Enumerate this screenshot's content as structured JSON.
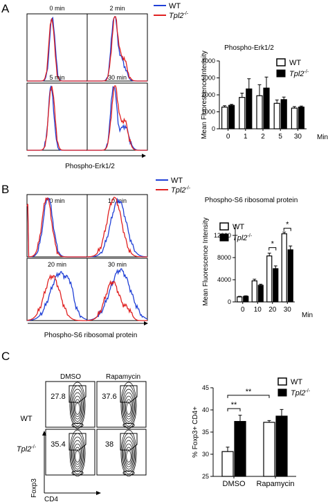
{
  "colors": {
    "wt": "#1f3fd6",
    "ko": "#e02020",
    "black": "#000000"
  },
  "panels": {
    "a": "A",
    "b": "B",
    "c": "C"
  },
  "legend": {
    "wt": "WT",
    "ko_base": "Tpl2",
    "ko_sup": "-/-"
  },
  "panel_a": {
    "flow_titles": [
      "0 min",
      "2 min",
      "5 min",
      "30 min"
    ],
    "flow_xlabel": "Phospho-Erk1/2",
    "bar_title": "Phospho-Erk1/2",
    "bar_ylabel": "Mean Fluorescence Intensity",
    "bar_unit": "Min"
  },
  "panel_b": {
    "flow_titles": [
      "0 min",
      "10 min",
      "20 min",
      "30 min"
    ],
    "flow_xlabel": "Phospho-S6 ribosomal protein",
    "bar_title": "Phospho-S6 ribosomal protein",
    "bar_ylabel": "Mean Fluorescence Intensity",
    "bar_unit": "Min",
    "sig": [
      "*",
      "*"
    ]
  },
  "panel_c": {
    "col_headers": [
      "DMSO",
      "Rapamycin"
    ],
    "row_labels": [
      "WT",
      "Tpl2"
    ],
    "row_sup": "-/-",
    "gate_values": [
      "27.8",
      "37.6",
      "35.4",
      "38"
    ],
    "yaxis": "Foxp3",
    "xaxis": "CD4",
    "bar_ylabel": "% Foxp3+ CD4+",
    "sig": [
      "**",
      "**"
    ]
  },
  "chart_data": [
    {
      "type": "bar",
      "title": "Phospho-Erk1/2",
      "xlabel": "Min",
      "ylabel": "Mean Fluorescence Intensity",
      "categories": [
        "0",
        "1",
        "2",
        "5",
        "30"
      ],
      "ylim": [
        0,
        4000
      ],
      "yticks": [
        0,
        1000,
        2000,
        3000,
        4000
      ],
      "series": [
        {
          "name": "WT",
          "values": [
            1280,
            1850,
            1950,
            1500,
            1220
          ],
          "errors": [
            80,
            250,
            650,
            200,
            90
          ]
        },
        {
          "name": "Tpl2-/-",
          "values": [
            1380,
            2350,
            2400,
            1720,
            1280
          ],
          "errors": [
            60,
            600,
            650,
            150,
            60
          ]
        }
      ]
    },
    {
      "type": "bar",
      "title": "Phospho-S6 ribosomal protein",
      "xlabel": "Min",
      "ylabel": "Mean Fluorescence Intensity",
      "categories": [
        "0",
        "10",
        "20",
        "30"
      ],
      "ylim": [
        0,
        14000
      ],
      "yticks": [
        0,
        4000,
        8000,
        12000
      ],
      "series": [
        {
          "name": "WT",
          "values": [
            900,
            3800,
            8300,
            12300
          ],
          "errors": [
            100,
            300,
            500,
            300
          ]
        },
        {
          "name": "Tpl2-/-",
          "values": [
            1000,
            3000,
            6000,
            9400
          ],
          "errors": [
            100,
            200,
            500,
            700
          ]
        }
      ]
    },
    {
      "type": "bar",
      "ylabel": "% Foxp3+ CD4+",
      "categories": [
        "DMSO",
        "Rapamycin"
      ],
      "ylim": [
        25,
        45
      ],
      "yticks": [
        25,
        30,
        35,
        40,
        45
      ],
      "series": [
        {
          "name": "WT",
          "values": [
            30.6,
            37.2
          ],
          "errors": [
            1.0,
            0.4
          ]
        },
        {
          "name": "Tpl2-/-",
          "values": [
            37.4,
            38.6
          ],
          "errors": [
            1.4,
            1.5
          ]
        }
      ]
    }
  ]
}
